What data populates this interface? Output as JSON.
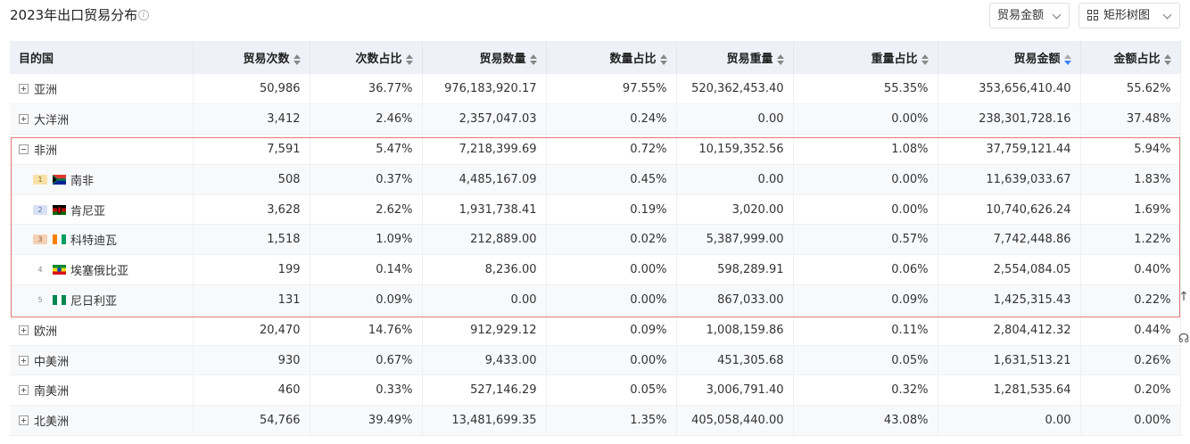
{
  "header": {
    "title": "2023年出口贸易分布",
    "info_glyph": "i",
    "metric_select": "贸易金额",
    "view_select": "矩形树图"
  },
  "table": {
    "columns": [
      "目的国",
      "贸易次数",
      "次数占比",
      "贸易数量",
      "数量占比",
      "贸易重量",
      "重量占比",
      "贸易金额",
      "金额占比"
    ],
    "sorted_column": "贸易金额",
    "rows": [
      {
        "name": "亚洲",
        "level": "region",
        "expanded": false,
        "values": [
          "50,986",
          "36.77%",
          "976,183,920.17",
          "97.55%",
          "520,362,453.40",
          "55.35%",
          "353,656,410.40",
          "55.62%"
        ]
      },
      {
        "name": "大洋洲",
        "level": "region",
        "expanded": false,
        "values": [
          "3,412",
          "2.46%",
          "2,357,047.03",
          "0.24%",
          "0.00",
          "0.00%",
          "238,301,728.16",
          "37.48%"
        ]
      },
      {
        "name": "非洲",
        "level": "region",
        "expanded": true,
        "values": [
          "7,591",
          "5.47%",
          "7,218,399.69",
          "0.72%",
          "10,159,352.56",
          "1.08%",
          "37,759,121.44",
          "5.94%"
        ]
      },
      {
        "name": "南非",
        "level": "country",
        "rank": "1",
        "flag": "south-africa",
        "values": [
          "508",
          "0.37%",
          "4,485,167.09",
          "0.45%",
          "0.00",
          "0.00%",
          "11,639,033.67",
          "1.83%"
        ]
      },
      {
        "name": "肯尼亚",
        "level": "country",
        "rank": "2",
        "flag": "kenya",
        "values": [
          "3,628",
          "2.62%",
          "1,931,738.41",
          "0.19%",
          "3,020.00",
          "0.00%",
          "10,740,626.24",
          "1.69%"
        ]
      },
      {
        "name": "科特迪瓦",
        "level": "country",
        "rank": "3",
        "flag": "cote-divoire",
        "values": [
          "1,518",
          "1.09%",
          "212,889.00",
          "0.02%",
          "5,387,999.00",
          "0.57%",
          "7,742,448.86",
          "1.22%"
        ]
      },
      {
        "name": "埃塞俄比亚",
        "level": "country",
        "rank": "4",
        "flag": "ethiopia",
        "values": [
          "199",
          "0.14%",
          "8,236.00",
          "0.00%",
          "598,289.91",
          "0.06%",
          "2,554,084.05",
          "0.40%"
        ]
      },
      {
        "name": "尼日利亚",
        "level": "country",
        "rank": "5",
        "flag": "nigeria",
        "values": [
          "131",
          "0.09%",
          "0.00",
          "0.00%",
          "867,033.00",
          "0.09%",
          "1,425,315.43",
          "0.22%"
        ]
      },
      {
        "name": "欧洲",
        "level": "region",
        "expanded": false,
        "values": [
          "20,470",
          "14.76%",
          "912,929.12",
          "0.09%",
          "1,008,159.86",
          "0.11%",
          "2,804,412.32",
          "0.44%"
        ]
      },
      {
        "name": "中美洲",
        "level": "region",
        "expanded": false,
        "values": [
          "930",
          "0.67%",
          "9,433.00",
          "0.00%",
          "451,305.68",
          "0.05%",
          "1,631,513.21",
          "0.26%"
        ]
      },
      {
        "name": "南美洲",
        "level": "region",
        "expanded": false,
        "values": [
          "460",
          "0.33%",
          "527,146.29",
          "0.05%",
          "3,006,791.40",
          "0.32%",
          "1,281,535.64",
          "0.20%"
        ]
      },
      {
        "name": "北美洲",
        "level": "region",
        "expanded": false,
        "values": [
          "54,766",
          "39.49%",
          "13,481,699.35",
          "1.35%",
          "405,058,440.00",
          "43.08%",
          "0.00",
          "0.00%"
        ]
      }
    ]
  },
  "side_buttons": {
    "top_glyph": "↑",
    "support_glyph": "☊"
  },
  "colors": {
    "header_bg": "#eef2f8",
    "highlight_border": "#e07a74",
    "sort_active": "#3b82f6"
  }
}
